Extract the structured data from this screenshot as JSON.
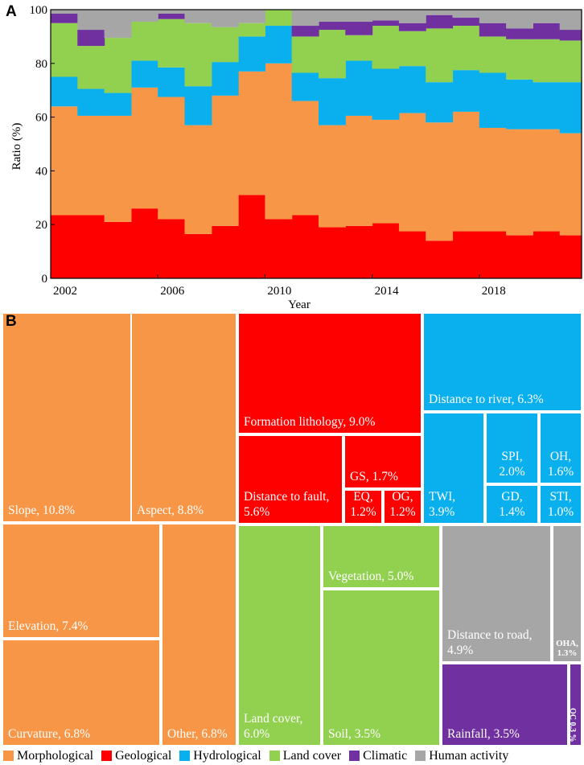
{
  "colors": {
    "Morphological": "#f79646",
    "Geological": "#ff0000",
    "Hydrological": "#0ab0ee",
    "Land cover": "#92d050",
    "Climatic": "#7030a0",
    "Human activity": "#a6a6a6"
  },
  "chart_data": [
    {
      "panel": "A",
      "type": "area",
      "stacked": true,
      "step": true,
      "xlabel": "Year",
      "ylabel": "Ratio (%)",
      "ylim": [
        0,
        100
      ],
      "yticks": [
        0,
        20,
        40,
        60,
        80,
        100
      ],
      "xticks": [
        "2002",
        "2006",
        "2010",
        "2014",
        "2018"
      ],
      "x": [
        2002,
        2003,
        2004,
        2005,
        2006,
        2007,
        2008,
        2009,
        2010,
        2011,
        2012,
        2013,
        2014,
        2015,
        2016,
        2017,
        2018,
        2019,
        2020,
        2021
      ],
      "series": [
        {
          "name": "Geological",
          "values": [
            23.5,
            23.5,
            21,
            26,
            22,
            16.5,
            19.5,
            31,
            22,
            23.5,
            19,
            19.5,
            20.5,
            17.5,
            14,
            17.5,
            17.5,
            16,
            17.5,
            16
          ]
        },
        {
          "name": "Morphological",
          "values": [
            40.5,
            37,
            39.5,
            45,
            45.5,
            40.5,
            48.5,
            46,
            58,
            42.5,
            38,
            41,
            38.5,
            44,
            44,
            44.5,
            38.5,
            39.5,
            38,
            38
          ]
        },
        {
          "name": "Hydrological",
          "values": [
            11,
            10,
            8.5,
            10,
            11,
            14.5,
            12.5,
            13,
            14,
            10.5,
            17.5,
            20.5,
            19,
            17.5,
            15,
            15.5,
            20.5,
            18.5,
            17.5,
            19
          ]
        },
        {
          "name": "Land cover",
          "values": [
            20,
            16,
            20.5,
            14.5,
            18,
            23.5,
            13,
            5,
            6,
            13.5,
            18,
            9.5,
            16,
            13,
            20,
            16.5,
            13.5,
            15,
            16,
            15.5
          ]
        },
        {
          "name": "Climatic",
          "values": [
            3.5,
            6,
            0,
            0,
            2,
            0,
            0,
            0,
            0,
            4,
            3,
            5,
            2,
            3,
            5,
            3,
            5,
            4,
            6,
            4
          ]
        },
        {
          "name": "Human activity",
          "values": [
            1.5,
            8,
            10.5,
            4.5,
            1.5,
            5,
            6.5,
            5,
            0,
            6,
            4.5,
            4.5,
            4,
            5,
            2,
            3,
            5,
            7,
            5,
            7.5
          ]
        }
      ]
    },
    {
      "panel": "B",
      "type": "treemap",
      "items": [
        {
          "name": "Slope",
          "value": 10.8,
          "category": "Morphological",
          "label": "Slope, 10.8%"
        },
        {
          "name": "Aspect",
          "value": 8.8,
          "category": "Morphological",
          "label": "Aspect, 8.8%"
        },
        {
          "name": "Elevation",
          "value": 7.4,
          "category": "Morphological",
          "label": "Elevation, 7.4%"
        },
        {
          "name": "Curvature",
          "value": 6.8,
          "category": "Morphological",
          "label": "Curvature, 6.8%"
        },
        {
          "name": "Other",
          "value": 6.8,
          "category": "Morphological",
          "label": "Other, 6.8%"
        },
        {
          "name": "Formation lithology",
          "value": 9.0,
          "category": "Geological",
          "label": "Formation lithology, 9.0%"
        },
        {
          "name": "Distance to fault",
          "value": 5.6,
          "category": "Geological",
          "label": "Distance to fault,\n5.6%"
        },
        {
          "name": "GS",
          "value": 1.7,
          "category": "Geological",
          "label": "GS, 1.7%"
        },
        {
          "name": "EQ",
          "value": 1.2,
          "category": "Geological",
          "label": "EQ,\n1.2%"
        },
        {
          "name": "OG",
          "value": 1.2,
          "category": "Geological",
          "label": "OG,\n1.2%"
        },
        {
          "name": "Distance to river",
          "value": 6.3,
          "category": "Hydrological",
          "label": "Distance to river, 6.3%"
        },
        {
          "name": "TWI",
          "value": 3.9,
          "category": "Hydrological",
          "label": "TWI,\n3.9%"
        },
        {
          "name": "SPI",
          "value": 2.0,
          "category": "Hydrological",
          "label": "SPI,\n2.0%"
        },
        {
          "name": "OH",
          "value": 1.6,
          "category": "Hydrological",
          "label": "OH,\n1.6%"
        },
        {
          "name": "GD",
          "value": 1.4,
          "category": "Hydrological",
          "label": "GD,\n1.4%"
        },
        {
          "name": "STI",
          "value": 1.0,
          "category": "Hydrological",
          "label": "STI,\n1.0%"
        },
        {
          "name": "Land cover",
          "value": 6.0,
          "category": "Land cover",
          "label": "Land cover,\n6.0%"
        },
        {
          "name": "Vegetation",
          "value": 5.0,
          "category": "Land cover",
          "label": "Vegetation, 5.0%"
        },
        {
          "name": "Soil",
          "value": 3.5,
          "category": "Land cover",
          "label": "Soil, 3.5%"
        },
        {
          "name": "Distance to road",
          "value": 4.9,
          "category": "Human activity",
          "label": "Distance to road,\n4.9%"
        },
        {
          "name": "OHA",
          "value": 1.3,
          "category": "Human activity",
          "label": "OHA,\n1.3%"
        },
        {
          "name": "Rainfall",
          "value": 3.5,
          "category": "Climatic",
          "label": "Rainfall, 3.5%"
        },
        {
          "name": "OC",
          "value": 0.3,
          "category": "Climatic",
          "label": "OC 0.3 %"
        }
      ]
    }
  ],
  "panels": {
    "a_label": "A",
    "b_label": "B"
  },
  "legend": [
    "Morphological",
    "Geological",
    "Hydrological",
    "Land cover",
    "Climatic",
    "Human activity"
  ]
}
